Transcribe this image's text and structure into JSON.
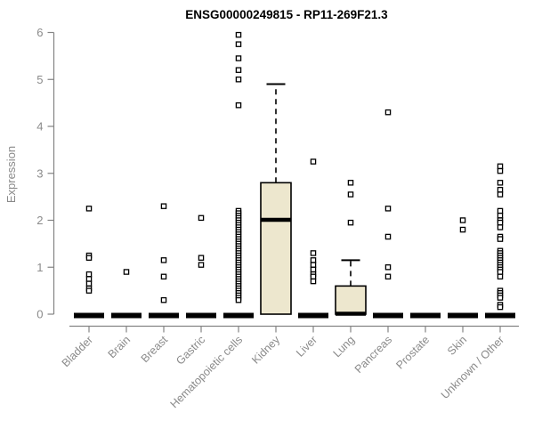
{
  "figure": {
    "background": "#ffffff"
  },
  "chart_data": {
    "type": "box",
    "title": "ENSG00000249815 - RP11-269F21.3",
    "xlabel": "",
    "ylabel": "Expression",
    "ylim": [
      0,
      6
    ],
    "yticks": [
      0,
      1,
      2,
      3,
      4,
      5,
      6
    ],
    "grid": false,
    "legend": "none",
    "colors": {
      "box_fill": "#EDE7CE",
      "box_border": "#000000",
      "median": "#000000",
      "marker": "#000000",
      "marker_fill": "#ffffff",
      "axis": "#848484",
      "tick_label": "#8a8a8a",
      "title": "#000000"
    },
    "categories": [
      "Bladder",
      "Brain",
      "Breast",
      "Gastric",
      "Hematopoietic cells",
      "Kidney",
      "Liver",
      "Lung",
      "Pancreas",
      "Prostate",
      "Skin",
      "Unknown / Other"
    ],
    "groups": [
      {
        "name": "Bladder",
        "q1": 0,
        "median": 0,
        "q3": 0,
        "whisker_low": 0,
        "whisker_high": 0,
        "points": [
          2.25,
          1.25,
          1.2,
          0.85,
          0.75,
          0.65,
          0.55,
          0.5
        ]
      },
      {
        "name": "Brain",
        "q1": 0,
        "median": 0,
        "q3": 0,
        "whisker_low": 0,
        "whisker_high": 0,
        "points": [
          0.9
        ]
      },
      {
        "name": "Breast",
        "q1": 0,
        "median": 0,
        "q3": 0,
        "whisker_low": 0,
        "whisker_high": 0,
        "points": [
          2.3,
          1.15,
          0.8,
          0.3
        ]
      },
      {
        "name": "Gastric",
        "q1": 0,
        "median": 0,
        "q3": 0,
        "whisker_low": 0,
        "whisker_high": 0,
        "points": [
          2.05,
          1.2,
          1.05
        ]
      },
      {
        "name": "Hematopoietic cells",
        "q1": 0,
        "median": 0,
        "q3": 0,
        "whisker_low": 0,
        "whisker_high": 0,
        "points": [
          5.95,
          5.75,
          5.45,
          5.2,
          5.0,
          4.45,
          2.2,
          2.15,
          2.1,
          2.05,
          2.0,
          1.95,
          1.9,
          1.85,
          1.8,
          1.75,
          1.7,
          1.65,
          1.6,
          1.55,
          1.5,
          1.45,
          1.4,
          1.35,
          1.3,
          1.25,
          1.2,
          1.15,
          1.1,
          1.05,
          1.0,
          0.95,
          0.9,
          0.85,
          0.8,
          0.75,
          0.7,
          0.65,
          0.6,
          0.55,
          0.5,
          0.45,
          0.4,
          0.35,
          0.3
        ]
      },
      {
        "name": "Kidney",
        "q1": 0,
        "median": 2.0,
        "q3": 2.8,
        "whisker_low": 0,
        "whisker_high": 4.9,
        "points": []
      },
      {
        "name": "Liver",
        "q1": 0,
        "median": 0,
        "q3": 0,
        "whisker_low": 0,
        "whisker_high": 0,
        "points": [
          3.25,
          1.3,
          1.15,
          1.05,
          0.95,
          0.85,
          0.8,
          0.7
        ]
      },
      {
        "name": "Lung",
        "q1": 0,
        "median": 0,
        "q3": 0.6,
        "whisker_low": 0,
        "whisker_high": 1.15,
        "points": [
          2.8,
          2.55,
          1.95
        ]
      },
      {
        "name": "Pancreas",
        "q1": 0,
        "median": 0,
        "q3": 0,
        "whisker_low": 0,
        "whisker_high": 0,
        "points": [
          4.3,
          2.25,
          1.65,
          1.0,
          0.8
        ]
      },
      {
        "name": "Prostate",
        "q1": 0,
        "median": 0,
        "q3": 0,
        "whisker_low": 0,
        "whisker_high": 0,
        "points": []
      },
      {
        "name": "Skin",
        "q1": 0,
        "median": 0,
        "q3": 0,
        "whisker_low": 0,
        "whisker_high": 0,
        "points": [
          2.0,
          1.8
        ]
      },
      {
        "name": "Unknown / Other",
        "q1": 0,
        "median": 0,
        "q3": 0,
        "whisker_low": 0,
        "whisker_high": 0,
        "points": [
          3.15,
          3.05,
          2.8,
          2.65,
          2.55,
          2.2,
          2.1,
          2.0,
          1.95,
          1.85,
          1.65,
          1.6,
          1.35,
          1.3,
          1.25,
          1.2,
          1.15,
          1.1,
          1.05,
          1.0,
          0.95,
          0.9,
          0.8,
          0.5,
          0.45,
          0.4,
          0.35,
          0.2,
          0.15
        ]
      }
    ]
  }
}
